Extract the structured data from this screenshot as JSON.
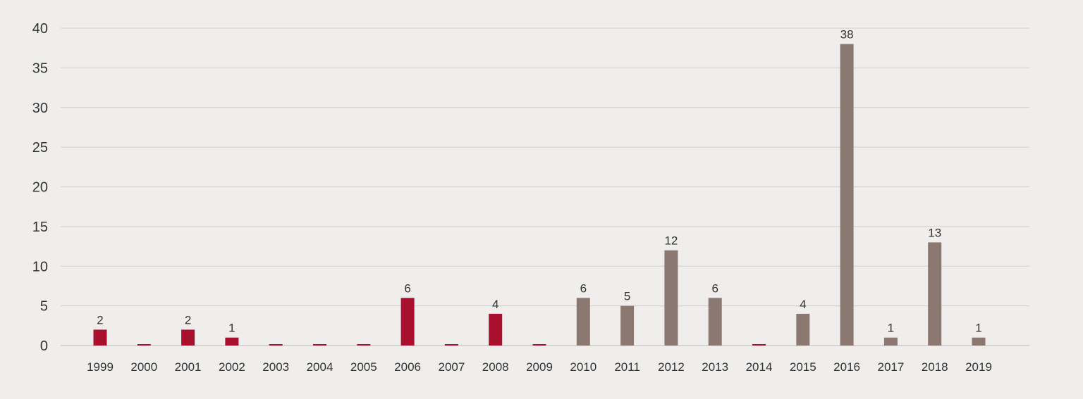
{
  "chart_data": {
    "type": "bar",
    "categories": [
      "1999",
      "2000",
      "2001",
      "2002",
      "2003",
      "2004",
      "2005",
      "2006",
      "2007",
      "2008",
      "2009",
      "2010",
      "2011",
      "2012",
      "2013",
      "2014",
      "2015",
      "2016",
      "2017",
      "2018",
      "2019"
    ],
    "values": [
      2,
      0,
      2,
      1,
      0,
      0,
      0,
      6,
      0,
      4,
      0,
      6,
      5,
      12,
      6,
      0,
      4,
      38,
      1,
      13,
      1
    ],
    "data_labels": [
      "2",
      "",
      "2",
      "1",
      "",
      "",
      "",
      "6",
      "",
      "4",
      "",
      "6",
      "5",
      "12",
      "6",
      "",
      "4",
      "38",
      "1",
      "13",
      "1"
    ],
    "bar_colors": [
      "#a8102e",
      "#a8102e",
      "#a8102e",
      "#a8102e",
      "#a8102e",
      "#a8102e",
      "#a8102e",
      "#a8102e",
      "#a8102e",
      "#a8102e",
      "#a8102e",
      "#8b7870",
      "#8b7870",
      "#8b7870",
      "#8b7870",
      "#a8102e",
      "#8b7870",
      "#8b7870",
      "#8b7870",
      "#8b7870",
      "#8b7870"
    ],
    "yticks": [
      0,
      5,
      10,
      15,
      20,
      25,
      30,
      35,
      40
    ],
    "ylim": [
      0,
      40
    ],
    "title": "",
    "xlabel": "",
    "ylabel": "",
    "grid": true,
    "legend": false
  }
}
